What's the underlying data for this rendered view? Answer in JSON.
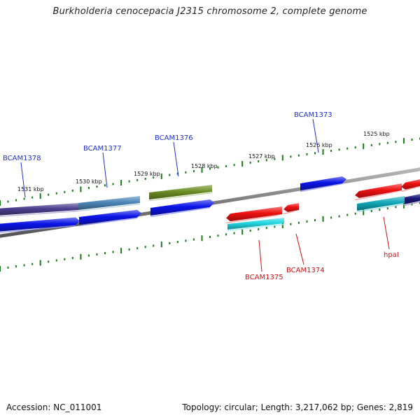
{
  "title": "Burkholderia cenocepacia J2315 chromosome 2, complete genome",
  "footer": {
    "accession": "Accession: NC_011001",
    "summary": "Topology: circular; Length: 3,217,062 bp; Genes: 2,819"
  },
  "colors": {
    "backbone": "#7a7a7a",
    "tick": "#1a7a1a",
    "label_forward": "#1f2fcf",
    "label_reverse": "#d01010"
  },
  "ruler": {
    "tick_labels": [
      "1531 kbp",
      "1530 kbp",
      "1529 kbp",
      "1528 kbp",
      "1527 kbp",
      "1526 kbp",
      "1525 kbp"
    ]
  },
  "features": [
    {
      "id": "f1",
      "color": "#4b3e8e",
      "strand": "forward"
    },
    {
      "id": "f2",
      "color": "#4b86b8",
      "strand": "forward"
    },
    {
      "id": "f3",
      "color": "#6b8e23",
      "strand": "forward"
    },
    {
      "id": "f4",
      "color": "#0a14e6",
      "strand": "forward"
    },
    {
      "id": "f5",
      "color": "#0a14e6",
      "strand": "forward"
    },
    {
      "id": "f6",
      "color": "#0a14e6",
      "strand": "forward"
    },
    {
      "id": "f7",
      "color": "#0a14e6",
      "strand": "forward"
    },
    {
      "id": "f8",
      "color": "#ee1111",
      "strand": "reverse"
    },
    {
      "id": "f9",
      "color": "#ee1111",
      "strand": "reverse"
    },
    {
      "id": "f10",
      "color": "#ee1111",
      "strand": "reverse"
    },
    {
      "id": "f11",
      "color": "#ee1111",
      "strand": "reverse"
    },
    {
      "id": "f12",
      "color": "#1a1a7a",
      "strand": "forward"
    },
    {
      "id": "f13",
      "color": "#22d6e0",
      "strand": "forward"
    },
    {
      "id": "f14",
      "color": "#10a8b8",
      "strand": "forward"
    }
  ],
  "gene_labels": [
    {
      "text": "BCAM1378",
      "strand": "forward"
    },
    {
      "text": "BCAM1377",
      "strand": "forward"
    },
    {
      "text": "BCAM1376",
      "strand": "forward"
    },
    {
      "text": "BCAM1373",
      "strand": "forward"
    },
    {
      "text": "BCAM1375",
      "strand": "reverse"
    },
    {
      "text": "BCAM1374",
      "strand": "reverse"
    },
    {
      "text": "hpaI",
      "strand": "reverse"
    }
  ]
}
